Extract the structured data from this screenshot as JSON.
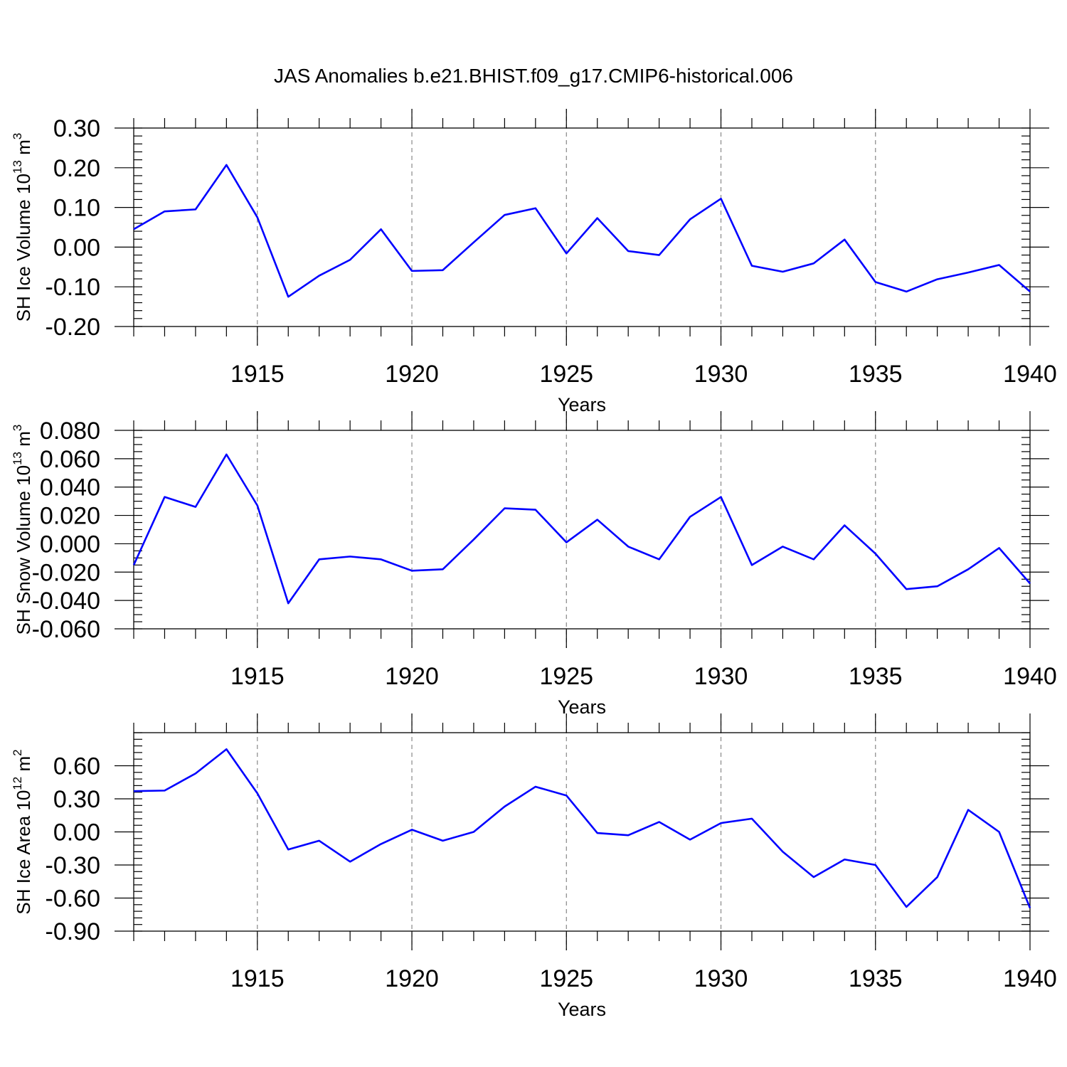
{
  "chart_data": {
    "type": "line",
    "title": "JAS Anomalies b.e21.BHIST.f09_g17.CMIP6-historical.006",
    "panels": [
      {
        "id": "ice-volume",
        "ylabel_main": "SH Ice Volume 10",
        "ylabel_exp": "13",
        "ylabel_unit": " m",
        "ylabel_unit_exp": "3",
        "xlabel": "Years",
        "xlim": [
          1911,
          1940
        ],
        "ylim": [
          -0.2,
          0.3
        ],
        "xticks": [
          1915,
          1920,
          1925,
          1930,
          1935,
          1940
        ],
        "xtick_labels": [
          "1915",
          "1920",
          "1925",
          "1930",
          "1935",
          "1940"
        ],
        "yticks": [
          -0.2,
          -0.1,
          0.0,
          0.1,
          0.2,
          0.3
        ],
        "ytick_labels": [
          "-0.20",
          "-0.10",
          "0.00",
          "0.10",
          "0.20",
          "0.30"
        ],
        "yminor_step": 0.02,
        "series": [
          {
            "name": "SH Ice Volume",
            "color": "#0000ff",
            "x": [
              1911,
              1912,
              1913,
              1914,
              1915,
              1916,
              1917,
              1918,
              1919,
              1920,
              1921,
              1922,
              1923,
              1924,
              1925,
              1926,
              1927,
              1928,
              1929,
              1930,
              1931,
              1932,
              1933,
              1934,
              1935,
              1936,
              1937,
              1938,
              1939,
              1940
            ],
            "y": [
              0.045,
              0.09,
              0.095,
              0.207,
              0.075,
              -0.125,
              -0.072,
              -0.032,
              0.045,
              -0.06,
              -0.058,
              0.012,
              0.081,
              0.098,
              -0.016,
              0.073,
              -0.01,
              -0.02,
              0.07,
              0.122,
              -0.047,
              -0.062,
              -0.041,
              0.019,
              -0.088,
              -0.112,
              -0.081,
              -0.064,
              -0.045,
              -0.112
            ]
          }
        ]
      },
      {
        "id": "snow-volume",
        "ylabel_main": "SH Snow Volume 10",
        "ylabel_exp": "13",
        "ylabel_unit": " m",
        "ylabel_unit_exp": "3",
        "xlabel": "Years",
        "xlim": [
          1911,
          1940
        ],
        "ylim": [
          -0.06,
          0.08
        ],
        "xticks": [
          1915,
          1920,
          1925,
          1930,
          1935,
          1940
        ],
        "xtick_labels": [
          "1915",
          "1920",
          "1925",
          "1930",
          "1935",
          "1940"
        ],
        "yticks": [
          -0.06,
          -0.04,
          -0.02,
          0.0,
          0.02,
          0.04,
          0.06,
          0.08
        ],
        "ytick_labels": [
          "-0.060",
          "-0.040",
          "-0.020",
          "0.000",
          "0.020",
          "0.040",
          "0.060",
          "0.080"
        ],
        "yminor_step": 0.005,
        "series": [
          {
            "name": "SH Snow Volume",
            "color": "#0000ff",
            "x": [
              1911,
              1912,
              1913,
              1914,
              1915,
              1916,
              1917,
              1918,
              1919,
              1920,
              1921,
              1922,
              1923,
              1924,
              1925,
              1926,
              1927,
              1928,
              1929,
              1930,
              1931,
              1932,
              1933,
              1934,
              1935,
              1936,
              1937,
              1938,
              1939,
              1940
            ],
            "y": [
              -0.015,
              0.033,
              0.026,
              0.063,
              0.027,
              -0.042,
              -0.011,
              -0.009,
              -0.011,
              -0.019,
              -0.018,
              0.003,
              0.025,
              0.024,
              0.001,
              0.017,
              -0.002,
              -0.011,
              0.019,
              0.033,
              -0.015,
              -0.002,
              -0.011,
              0.013,
              -0.007,
              -0.032,
              -0.03,
              -0.018,
              -0.003,
              -0.028
            ]
          }
        ]
      },
      {
        "id": "ice-area",
        "ylabel_main": "SH Ice Area 10",
        "ylabel_exp": "12",
        "ylabel_unit": " m",
        "ylabel_unit_exp": "2",
        "xlabel": "Years",
        "xlim": [
          1911,
          1940
        ],
        "ylim": [
          -0.9,
          0.9
        ],
        "xticks": [
          1915,
          1920,
          1925,
          1930,
          1935,
          1940
        ],
        "xtick_labels": [
          "1915",
          "1920",
          "1925",
          "1930",
          "1935",
          "1940"
        ],
        "yticks": [
          -0.9,
          -0.6,
          -0.3,
          0.0,
          0.3,
          0.6
        ],
        "ytick_labels": [
          "-0.90",
          "-0.60",
          "-0.30",
          "0.00",
          "0.30",
          "0.60"
        ],
        "yminor_step": 0.06,
        "series": [
          {
            "name": "SH Ice Area",
            "color": "#0000ff",
            "x": [
              1911,
              1912,
              1913,
              1914,
              1915,
              1916,
              1917,
              1918,
              1919,
              1920,
              1921,
              1922,
              1923,
              1924,
              1925,
              1926,
              1927,
              1928,
              1929,
              1930,
              1931,
              1932,
              1933,
              1934,
              1935,
              1936,
              1937,
              1938,
              1939,
              1940
            ],
            "y": [
              0.37,
              0.375,
              0.53,
              0.75,
              0.35,
              -0.16,
              -0.08,
              -0.27,
              -0.11,
              0.02,
              -0.08,
              0.0,
              0.23,
              0.41,
              0.33,
              -0.01,
              -0.03,
              0.09,
              -0.07,
              0.08,
              0.12,
              -0.18,
              -0.41,
              -0.25,
              -0.3,
              -0.68,
              -0.41,
              0.2,
              0.0,
              -0.69
            ]
          }
        ]
      }
    ]
  }
}
